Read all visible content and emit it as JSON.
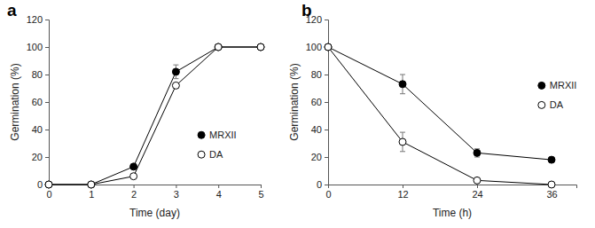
{
  "chart_data": [
    {
      "type": "line",
      "title": "a",
      "x_label": "Time (day)",
      "y_label": "Germination (%)",
      "x": [
        0,
        1,
        2,
        3,
        4,
        5
      ],
      "xlim": [
        0,
        5
      ],
      "xticks": [
        0,
        1,
        2,
        3,
        4,
        5
      ],
      "ylim": [
        0,
        120
      ],
      "yticks": [
        0,
        20,
        40,
        60,
        80,
        100,
        120
      ],
      "legend": "lower right",
      "series": [
        {
          "name": "MRXII",
          "color": "#000000",
          "marker": "filled-circle",
          "values": [
            0,
            0,
            13,
            82,
            100,
            100
          ],
          "errors": [
            null,
            null,
            null,
            5,
            null,
            null
          ]
        },
        {
          "name": "DA",
          "color": "#000000",
          "marker": "open-circle",
          "values": [
            0,
            0,
            6,
            72,
            100,
            100
          ],
          "errors": [
            null,
            null,
            null,
            null,
            null,
            null
          ]
        }
      ]
    },
    {
      "type": "line",
      "title": "b",
      "x_label": "Time (h)",
      "y_label": "Germination (%)",
      "x": [
        0,
        12,
        24,
        36
      ],
      "xlim": [
        0,
        40
      ],
      "xticks": [
        0,
        12,
        24,
        36
      ],
      "ylim": [
        0,
        120
      ],
      "yticks": [
        0,
        20,
        40,
        60,
        80,
        100,
        120
      ],
      "legend": "center right",
      "series": [
        {
          "name": "MRXII",
          "color": "#000000",
          "marker": "filled-circle",
          "values": [
            100,
            73,
            23,
            18
          ],
          "errors": [
            null,
            7,
            3,
            null
          ]
        },
        {
          "name": "DA",
          "color": "#000000",
          "marker": "open-circle",
          "values": [
            100,
            31,
            3,
            0
          ],
          "errors": [
            null,
            7,
            null,
            null
          ]
        }
      ]
    }
  ]
}
